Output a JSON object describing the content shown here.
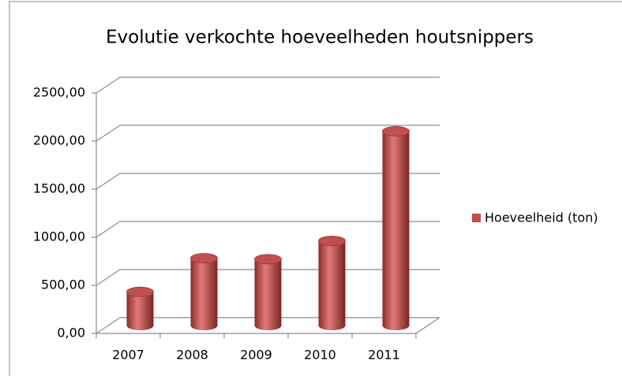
{
  "chart_data": {
    "type": "bar3d-cylinder",
    "title": "Evolutie verkochte hoeveelheden houtsnippers",
    "categories": [
      "2007",
      "2008",
      "2009",
      "2010",
      "2011"
    ],
    "series": [
      {
        "name": "Hoeveelheid (ton)",
        "color": "#c0504d",
        "values": [
          350,
          700,
          690,
          880,
          2020
        ]
      }
    ],
    "ylim": [
      0,
      2500
    ],
    "yticks": [
      {
        "value": 0,
        "label": "0,00"
      },
      {
        "value": 500,
        "label": "500,00"
      },
      {
        "value": 1000,
        "label": "1000,00"
      },
      {
        "value": 1500,
        "label": "1500,00"
      },
      {
        "value": 2000,
        "label": "2000,00"
      },
      {
        "value": 2500,
        "label": "2500,00"
      }
    ],
    "grid": true,
    "legend": "right"
  }
}
